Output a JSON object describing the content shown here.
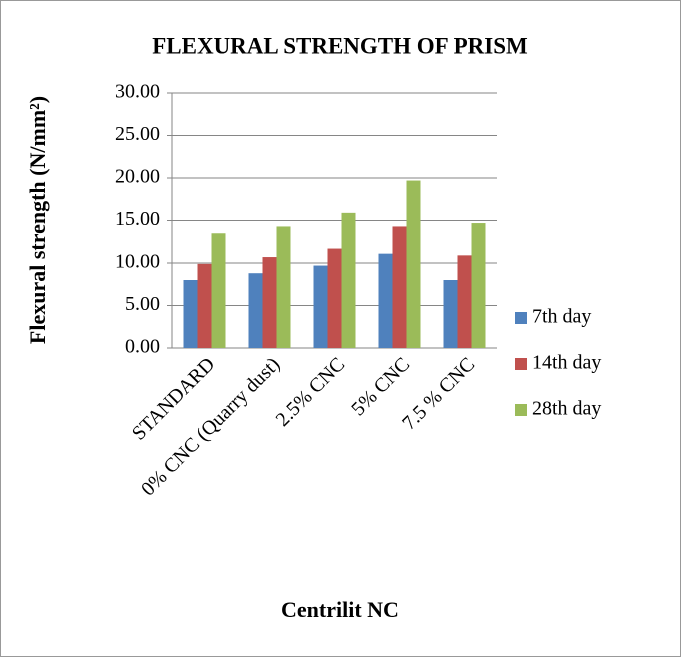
{
  "chart_data": {
    "type": "bar",
    "title": "FLEXURAL STRENGTH OF PRISM",
    "x_label": "Centrilit NC",
    "y_label": "Flexural strength (N/mm²)",
    "categories": [
      "STANDARD",
      "0% CNC (Quarry dust)",
      "2.5% CNC",
      "5% CNC",
      "7.5 % CNC"
    ],
    "series": [
      {
        "name": "7th day",
        "color": "#4f81bd",
        "values": [
          8.0,
          8.8,
          9.7,
          11.1,
          8.0
        ]
      },
      {
        "name": "14th day",
        "color": "#c0504d",
        "values": [
          9.9,
          10.7,
          11.7,
          14.3,
          10.9
        ]
      },
      {
        "name": "28th day",
        "color": "#9bbb59",
        "values": [
          13.5,
          14.3,
          15.9,
          19.7,
          14.7
        ]
      }
    ],
    "ylim": [
      0,
      30
    ],
    "yticks": [
      {
        "value": 0,
        "label": "0.00"
      },
      {
        "value": 5,
        "label": "5.00"
      },
      {
        "value": 10,
        "label": "10.00"
      },
      {
        "value": 15,
        "label": "15.00"
      },
      {
        "value": 20,
        "label": "20.00"
      },
      {
        "value": 25,
        "label": "25.00"
      },
      {
        "value": 30,
        "label": "30.00"
      }
    ],
    "grid": true,
    "legend": "right"
  }
}
